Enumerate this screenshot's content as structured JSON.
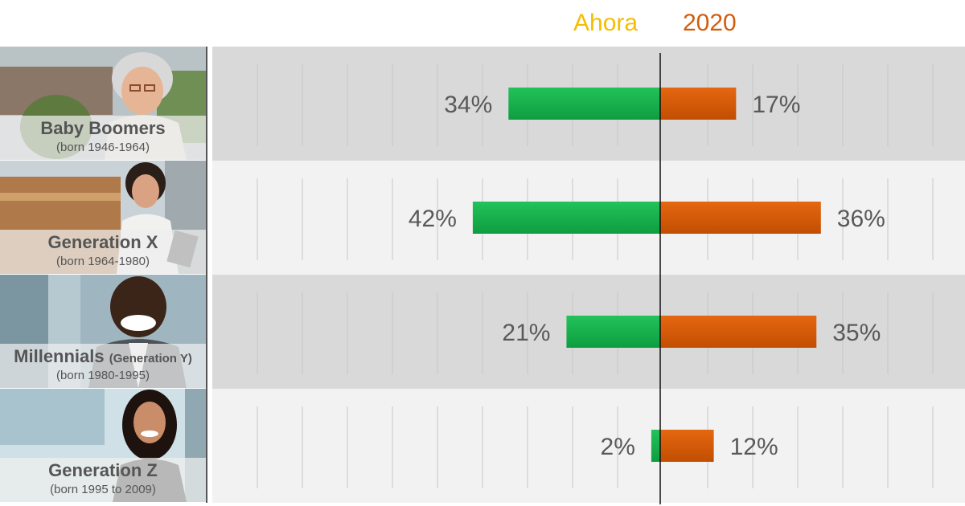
{
  "legend": {
    "left_label": "Ahora",
    "right_label": "2020",
    "left_color": "#F5BD00",
    "right_color": "#D35C0C"
  },
  "colors": {
    "now_bar": "#12B04C",
    "future_bar": "#D85A06",
    "band_dark": "#D9D9D9",
    "band_light": "#F2F2F2"
  },
  "groups": [
    {
      "name": "Baby Boomers",
      "name_suffix": "",
      "years": "(born 1946-1964)",
      "photo": "older-woman-with-glasses-photo"
    },
    {
      "name": "Generation X",
      "name_suffix": "",
      "years": "(born 1964-1980)",
      "photo": "woman-in-white-blazer-photo"
    },
    {
      "name": "Millennials",
      "name_suffix": "(Generation Y)",
      "years": "(born 1980-1995)",
      "photo": "smiling-man-photo"
    },
    {
      "name": "Generation Z",
      "name_suffix": "",
      "years": "(born 1995 to 2009)",
      "photo": "young-woman-photo"
    }
  ],
  "chart_data": {
    "type": "bar",
    "orientation": "horizontal-diverging",
    "categories": [
      "Baby Boomers",
      "Generation X",
      "Millennials",
      "Generation Z"
    ],
    "series": [
      {
        "name": "Ahora",
        "values": [
          34,
          42,
          21,
          2
        ],
        "labels": [
          "34%",
          "42%",
          "21%",
          "2%"
        ]
      },
      {
        "name": "2020",
        "values": [
          17,
          36,
          35,
          12
        ],
        "labels": [
          "17%",
          "36%",
          "35%",
          "12%"
        ]
      }
    ],
    "unit": "%",
    "grid": true,
    "legend_position": "top-center"
  }
}
